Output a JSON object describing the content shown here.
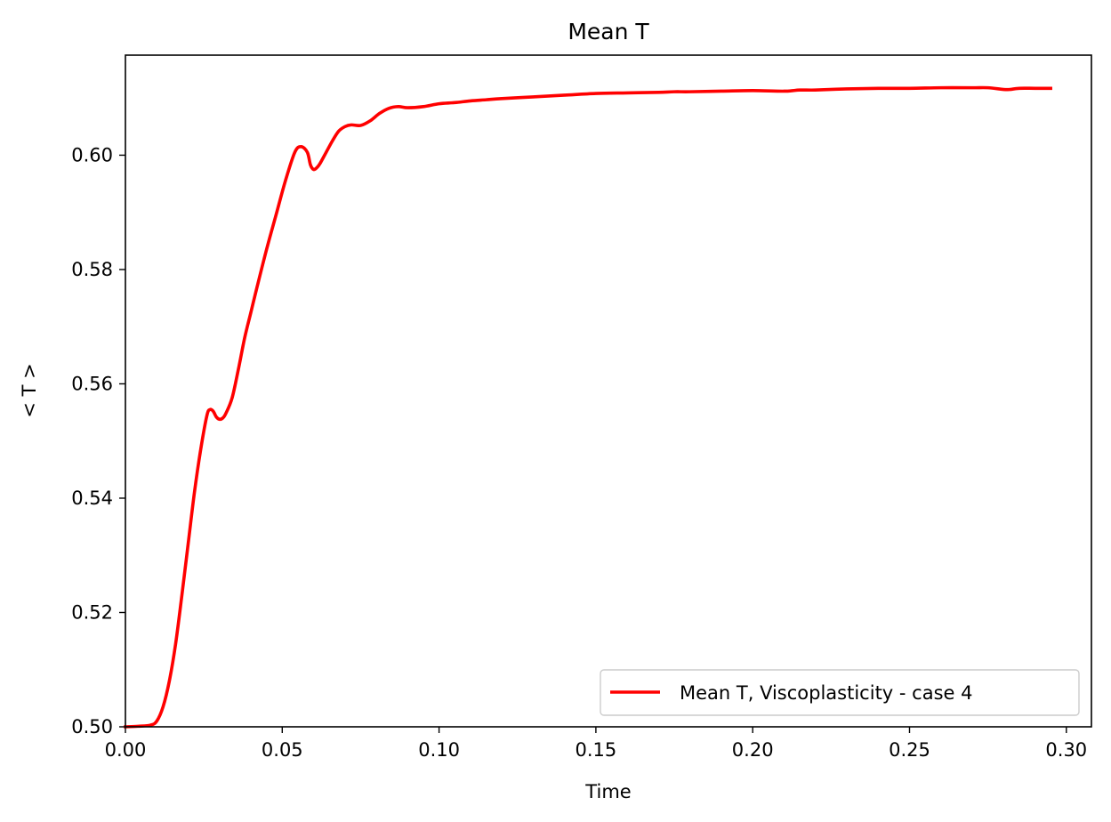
{
  "chart_data": {
    "type": "line",
    "title": "Mean T",
    "xlabel": "Time",
    "ylabel": "< T >",
    "xlim": [
      0.0,
      0.308
    ],
    "ylim": [
      0.5,
      0.6175
    ],
    "xticks": [
      "0.00",
      "0.05",
      "0.10",
      "0.15",
      "0.20",
      "0.25",
      "0.30"
    ],
    "xtick_values": [
      0.0,
      0.05,
      0.1,
      0.15,
      0.2,
      0.25,
      0.3
    ],
    "yticks": [
      "0.50",
      "0.52",
      "0.54",
      "0.56",
      "0.58",
      "0.60"
    ],
    "ytick_values": [
      0.5,
      0.52,
      0.54,
      0.56,
      0.58,
      0.6
    ],
    "grid": false,
    "legend_position": "lower-right",
    "series": [
      {
        "name": "Mean T, Viscoplasticity - case 4",
        "color": "#ff0000",
        "x": [
          0.0,
          0.004,
          0.008,
          0.01,
          0.012,
          0.014,
          0.016,
          0.018,
          0.02,
          0.022,
          0.024,
          0.026,
          0.027,
          0.028,
          0.029,
          0.03,
          0.031,
          0.032,
          0.034,
          0.036,
          0.038,
          0.04,
          0.042,
          0.045,
          0.048,
          0.051,
          0.054,
          0.056,
          0.058,
          0.059,
          0.06,
          0.061,
          0.062,
          0.064,
          0.066,
          0.068,
          0.07,
          0.072,
          0.075,
          0.078,
          0.081,
          0.084,
          0.087,
          0.09,
          0.095,
          0.1,
          0.105,
          0.11,
          0.115,
          0.12,
          0.13,
          0.14,
          0.15,
          0.16,
          0.17,
          0.175,
          0.18,
          0.19,
          0.2,
          0.21,
          0.215,
          0.22,
          0.23,
          0.24,
          0.25,
          0.26,
          0.27,
          0.275,
          0.28,
          0.282,
          0.285,
          0.29,
          0.295
        ],
        "y": [
          0.5,
          0.5001,
          0.5003,
          0.501,
          0.5035,
          0.508,
          0.5145,
          0.523,
          0.532,
          0.541,
          0.5485,
          0.5545,
          0.5555,
          0.5552,
          0.5542,
          0.5538,
          0.554,
          0.5548,
          0.5575,
          0.5625,
          0.568,
          0.5725,
          0.577,
          0.5835,
          0.5895,
          0.5955,
          0.6005,
          0.6015,
          0.6005,
          0.5983,
          0.5975,
          0.5978,
          0.5985,
          0.6005,
          0.6025,
          0.6042,
          0.605,
          0.6053,
          0.6052,
          0.606,
          0.6073,
          0.6082,
          0.6085,
          0.6083,
          0.6085,
          0.609,
          0.6092,
          0.6095,
          0.6097,
          0.6099,
          0.6102,
          0.6105,
          0.6108,
          0.6109,
          0.611,
          0.6111,
          0.6111,
          0.6112,
          0.6113,
          0.6112,
          0.6114,
          0.6114,
          0.6116,
          0.6117,
          0.6117,
          0.6118,
          0.6118,
          0.6118,
          0.6115,
          0.6115,
          0.6117,
          0.6117,
          0.6117
        ]
      }
    ]
  }
}
